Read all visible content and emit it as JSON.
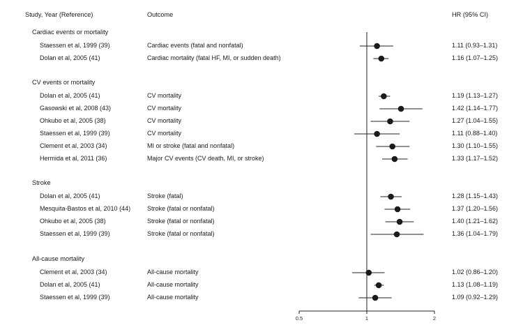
{
  "headers": {
    "study": "Study, Year (Reference)",
    "outcome": "Outcome",
    "hr": "HR (95% CI)"
  },
  "chart_data": {
    "type": "forest",
    "x_ticks": [
      "0.5",
      "1",
      "2"
    ],
    "xlim": [
      0.5,
      2
    ],
    "x_scale": "log",
    "reference_line": 1,
    "groups": [
      {
        "name": "Cardiac events or mortality",
        "rows": [
          {
            "study": "Staessen et al, 1999 (39)",
            "outcome": "Cardiac events (fatal and nonfatal)",
            "hr": 1.11,
            "lo": 0.93,
            "hi": 1.31,
            "label": "1.11 (0.93–1.31)"
          },
          {
            "study": "Dolan et al, 2005 (41)",
            "outcome": "Cardiac mortality (fatal HF, MI, or sudden death)",
            "hr": 1.16,
            "lo": 1.07,
            "hi": 1.25,
            "label": "1.16 (1.07–1.25)"
          }
        ]
      },
      {
        "name": "CV events or mortality",
        "rows": [
          {
            "study": "Dolan et al, 2005 (41)",
            "outcome": "CV mortality",
            "hr": 1.19,
            "lo": 1.13,
            "hi": 1.27,
            "label": "1.19 (1.13–1.27)"
          },
          {
            "study": "Gasowski et al, 2008 (43)",
            "outcome": "CV mortality",
            "hr": 1.42,
            "lo": 1.14,
            "hi": 1.77,
            "label": "1.42 (1.14–1.77)"
          },
          {
            "study": "Ohkubo et al, 2005 (38)",
            "outcome": "CV mortality",
            "hr": 1.27,
            "lo": 1.04,
            "hi": 1.55,
            "label": "1.27 (1.04–1.55)"
          },
          {
            "study": "Staessen et al, 1999 (39)",
            "outcome": "CV mortality",
            "hr": 1.11,
            "lo": 0.88,
            "hi": 1.4,
            "label": "1.11 (0.88–1.40)"
          },
          {
            "study": "Clement et al, 2003 (34)",
            "outcome": "MI or stroke (fatal and nonfatal)",
            "hr": 1.3,
            "lo": 1.1,
            "hi": 1.55,
            "label": "1.30 (1.10–1.55)"
          },
          {
            "study": "Hermida et al, 2011 (36)",
            "outcome": "Major CV events (CV death, MI, or stroke)",
            "hr": 1.33,
            "lo": 1.17,
            "hi": 1.52,
            "label": "1.33 (1.17–1.52)"
          }
        ]
      },
      {
        "name": "Stroke",
        "rows": [
          {
            "study": "Dolan et al, 2005 (41)",
            "outcome": "Stroke (fatal)",
            "hr": 1.28,
            "lo": 1.15,
            "hi": 1.43,
            "label": "1.28 (1.15–1.43)"
          },
          {
            "study": "Mesquita-Bastos et al, 2010 (44)",
            "outcome": "Stroke (fatal or nonfatal)",
            "hr": 1.37,
            "lo": 1.2,
            "hi": 1.56,
            "label": "1.37 (1.20–1.56)"
          },
          {
            "study": "Ohkubo et al, 2005 (38)",
            "outcome": "Stroke (fatal or nonfatal)",
            "hr": 1.4,
            "lo": 1.21,
            "hi": 1.62,
            "label": "1.40 (1.21–1.62)"
          },
          {
            "study": "Staessen et al, 1999 (39)",
            "outcome": "Stroke (fatal or nonfatal)",
            "hr": 1.36,
            "lo": 1.04,
            "hi": 1.79,
            "label": "1.36 (1.04–1.79)"
          }
        ]
      },
      {
        "name": "All-cause mortality",
        "rows": [
          {
            "study": "Clement et al, 2003 (34)",
            "outcome": "All-cause mortality",
            "hr": 1.02,
            "lo": 0.86,
            "hi": 1.2,
            "label": "1.02 (0.86–1.20)"
          },
          {
            "study": "Dolan et al, 2005 (41)",
            "outcome": "All-cause mortality",
            "hr": 1.13,
            "lo": 1.08,
            "hi": 1.19,
            "label": "1.13 (1.08–1.19)"
          },
          {
            "study": "Staessen et al, 1999 (39)",
            "outcome": "All-cause mortality",
            "hr": 1.09,
            "lo": 0.92,
            "hi": 1.29,
            "label": "1.09 (0.92–1.29)"
          }
        ]
      }
    ]
  }
}
